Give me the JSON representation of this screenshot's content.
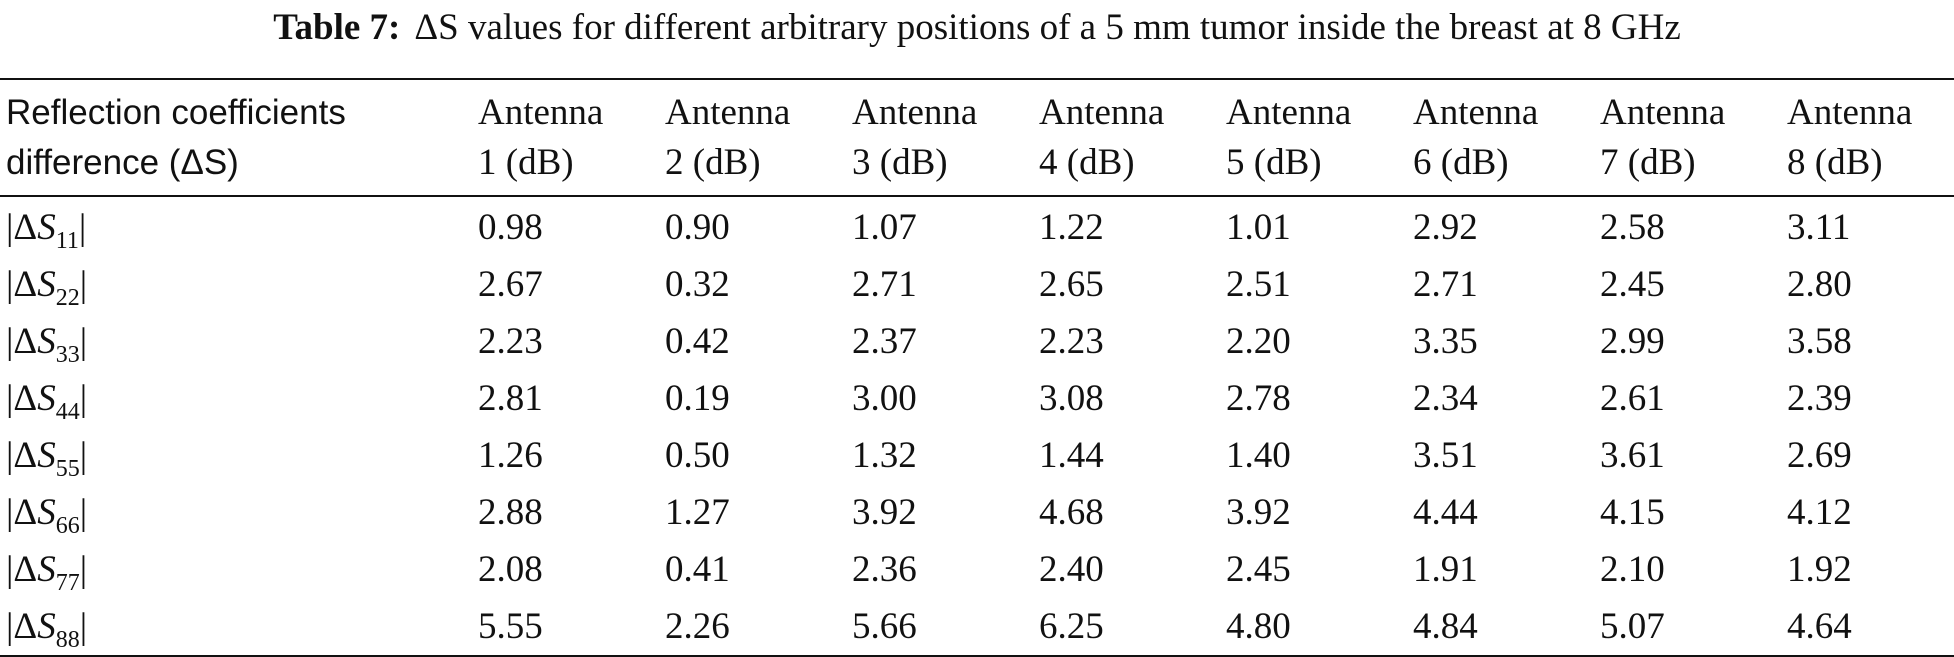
{
  "caption": {
    "label": "Table 7:",
    "text": "ΔS values for different arbitrary positions of a 5 mm tumor inside the breast at 8 GHz"
  },
  "header": {
    "row_label_line1": "Reflection coefficients",
    "row_label_line2": "difference (ΔS)",
    "antennas": [
      {
        "line1": "Antenna",
        "line2": "1 (dB)"
      },
      {
        "line1": "Antenna",
        "line2": "2 (dB)"
      },
      {
        "line1": "Antenna",
        "line2": "3 (dB)"
      },
      {
        "line1": "Antenna",
        "line2": "4 (dB)"
      },
      {
        "line1": "Antenna",
        "line2": "5 (dB)"
      },
      {
        "line1": "Antenna",
        "line2": "6 (dB)"
      },
      {
        "line1": "Antenna",
        "line2": "7 (dB)"
      },
      {
        "line1": "Antenna",
        "line2": "8 (dB)"
      }
    ]
  },
  "rows": [
    {
      "prefix": "|Δ",
      "symbol": "S",
      "sub": "11",
      "suffix": "|",
      "values": [
        "0.98",
        "0.90",
        "1.07",
        "1.22",
        "1.01",
        "2.92",
        "2.58",
        "3.11"
      ]
    },
    {
      "prefix": "|Δ",
      "symbol": "S",
      "sub": "22",
      "suffix": "|",
      "values": [
        "2.67",
        "0.32",
        "2.71",
        "2.65",
        "2.51",
        "2.71",
        "2.45",
        "2.80"
      ]
    },
    {
      "prefix": "|Δ",
      "symbol": "S",
      "sub": "33",
      "suffix": "|",
      "values": [
        "2.23",
        "0.42",
        "2.37",
        "2.23",
        "2.20",
        "3.35",
        "2.99",
        "3.58"
      ]
    },
    {
      "prefix": "|Δ",
      "symbol": "S",
      "sub": "44",
      "suffix": "|",
      "values": [
        "2.81",
        "0.19",
        "3.00",
        "3.08",
        "2.78",
        "2.34",
        "2.61",
        "2.39"
      ]
    },
    {
      "prefix": "|Δ",
      "symbol": "S",
      "sub": "55",
      "suffix": "|",
      "values": [
        "1.26",
        "0.50",
        "1.32",
        "1.44",
        "1.40",
        "3.51",
        "3.61",
        "2.69"
      ]
    },
    {
      "prefix": "|Δ",
      "symbol": "S",
      "sub": "66",
      "suffix": "|",
      "values": [
        "2.88",
        "1.27",
        "3.92",
        "4.68",
        "3.92",
        "4.44",
        "4.15",
        "4.12"
      ]
    },
    {
      "prefix": "|Δ",
      "symbol": "S",
      "sub": "77",
      "suffix": "|",
      "values": [
        "2.08",
        "0.41",
        "2.36",
        "2.40",
        "2.45",
        "1.91",
        "2.10",
        "1.92"
      ]
    },
    {
      "prefix": "|Δ",
      "symbol": "S",
      "sub": "88",
      "suffix": "|",
      "values": [
        "5.55",
        "2.26",
        "5.66",
        "6.25",
        "4.80",
        "4.84",
        "5.07",
        "4.64"
      ]
    }
  ]
}
